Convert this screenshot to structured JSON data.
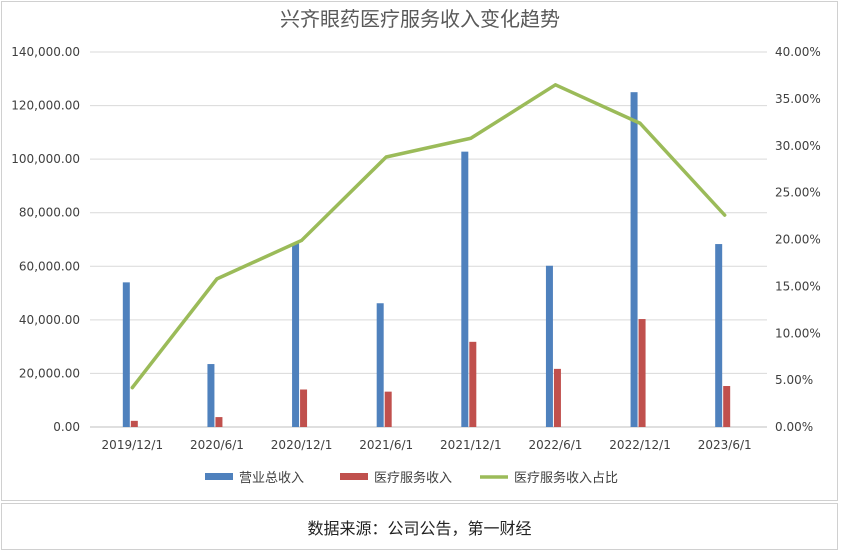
{
  "chart_data": {
    "type": "bar",
    "title": "兴齐眼药医疗服务收入变化趋势",
    "categories": [
      "2019/12/1",
      "2020/6/1",
      "2020/12/1",
      "2021/6/1",
      "2021/12/1",
      "2022/6/1",
      "2022/12/1",
      "2023/6/1"
    ],
    "series": [
      {
        "name": "营业总收入",
        "kind": "bar",
        "axis": "left",
        "color": "#4f81bd",
        "values": [
          54000,
          23500,
          68500,
          46200,
          102800,
          60200,
          125000,
          68300
        ]
      },
      {
        "name": "医疗服务收入",
        "kind": "bar",
        "axis": "left",
        "color": "#c0504d",
        "values": [
          2300,
          3700,
          14000,
          13200,
          31800,
          21700,
          40300,
          15300
        ]
      },
      {
        "name": "医疗服务收入占比",
        "kind": "line",
        "axis": "right",
        "color": "#9bbb59",
        "values": [
          0.042,
          0.158,
          0.199,
          0.288,
          0.308,
          0.365,
          0.324,
          0.226
        ]
      }
    ],
    "y_left": {
      "min": 0,
      "max": 140000,
      "step": 20000,
      "tick_labels": [
        "0.00",
        "20,000.00",
        "40,000.00",
        "60,000.00",
        "80,000.00",
        "100,000.00",
        "120,000.00",
        "140,000.00"
      ]
    },
    "y_right": {
      "min": 0,
      "max": 0.4,
      "step": 0.05,
      "tick_labels": [
        "0.00%",
        "5.00%",
        "10.00%",
        "15.00%",
        "20.00%",
        "25.00%",
        "30.00%",
        "35.00%",
        "40.00%"
      ]
    },
    "grid": true,
    "legend_position": "bottom"
  },
  "footer": {
    "source": "数据来源：公司公告，第一财经"
  }
}
